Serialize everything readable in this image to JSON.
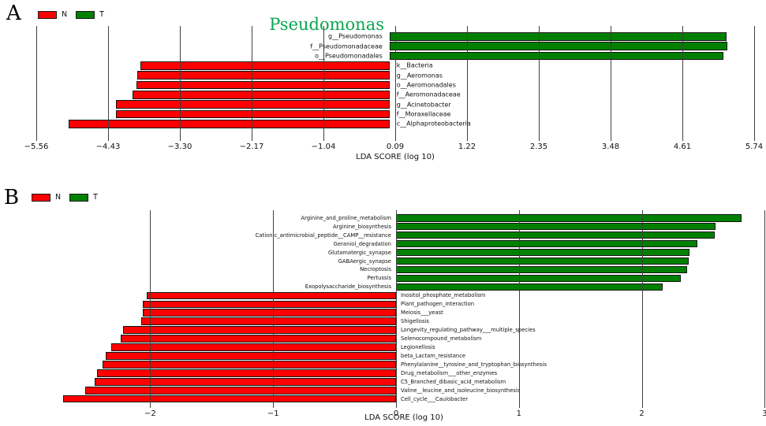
{
  "figure_type": "LEfSe LDA score horizontal bar charts, two panels",
  "colors": {
    "group_N": "#ff0000",
    "group_T": "#008000",
    "title_green": "#0aa64f",
    "bar_edge": "#141414"
  },
  "chart_data": [
    {
      "type": "bar",
      "orientation": "horizontal",
      "panel_letter": "A",
      "title": "Pseudomonas",
      "title_color": "#0aa64f",
      "xlabel": "LDA SCORE (log 10)",
      "legend": [
        {
          "label": "N",
          "color": "#ff0000"
        },
        {
          "label": "T",
          "color": "#008000"
        }
      ],
      "legend_position": "top-left",
      "grid": true,
      "xlim": [
        -5.56,
        5.74
      ],
      "ticks": [
        {
          "value": -5.56,
          "label": "−5.56"
        },
        {
          "value": -4.43,
          "label": "−4.43"
        },
        {
          "value": -3.3,
          "label": "−3.30"
        },
        {
          "value": -2.17,
          "label": "−2.17"
        },
        {
          "value": -1.04,
          "label": "−1.04"
        },
        {
          "value": 0.09,
          "label": "0.09"
        },
        {
          "value": 1.22,
          "label": "1.22"
        },
        {
          "value": 2.35,
          "label": "2.35"
        },
        {
          "value": 3.48,
          "label": "3.48"
        },
        {
          "value": 4.61,
          "label": "4.61"
        },
        {
          "value": 5.74,
          "label": "5.74"
        }
      ],
      "bars": [
        {
          "category": "g__Pseudomonas",
          "value": 5.3,
          "group": "T",
          "color": "#008000"
        },
        {
          "category": "f__Pseudomonadaceae",
          "value": 5.32,
          "group": "T",
          "color": "#008000"
        },
        {
          "category": "o__Pseudomonadales",
          "value": 5.26,
          "group": "T",
          "color": "#008000"
        },
        {
          "category": "k__Bacteria",
          "value": -3.92,
          "group": "N",
          "color": "#ff0000"
        },
        {
          "category": "g__Aeromonas",
          "value": -3.97,
          "group": "N",
          "color": "#ff0000"
        },
        {
          "category": "o__Aeromonadales",
          "value": -3.98,
          "group": "N",
          "color": "#ff0000"
        },
        {
          "category": "f__Aeromonadaceae",
          "value": -4.05,
          "group": "N",
          "color": "#ff0000"
        },
        {
          "category": "g__Acinetobacter",
          "value": -4.3,
          "group": "N",
          "color": "#ff0000"
        },
        {
          "category": "f__Moraxellaceae",
          "value": -4.3,
          "group": "N",
          "color": "#ff0000"
        },
        {
          "category": "c__Alphaproteobacteria",
          "value": -5.05,
          "group": "N",
          "color": "#ff0000"
        }
      ]
    },
    {
      "type": "bar",
      "orientation": "horizontal",
      "panel_letter": "B",
      "title": "",
      "xlabel": "LDA SCORE (log 10)",
      "legend": [
        {
          "label": "N",
          "color": "#ff0000"
        },
        {
          "label": "T",
          "color": "#008000"
        }
      ],
      "legend_position": "top-left",
      "grid": true,
      "xlim": [
        -2.75,
        3
      ],
      "ticks": [
        {
          "value": -2,
          "label": "−2"
        },
        {
          "value": -1,
          "label": "−1"
        },
        {
          "value": 0,
          "label": "0"
        },
        {
          "value": 1,
          "label": "1"
        },
        {
          "value": 2,
          "label": "2"
        },
        {
          "value": 3,
          "label": "3"
        }
      ],
      "bars": [
        {
          "category": "Arginine_and_proline_metabolism",
          "value": 2.81,
          "group": "T",
          "color": "#008000"
        },
        {
          "category": "Arginine_biosynthesis",
          "value": 2.6,
          "group": "T",
          "color": "#008000"
        },
        {
          "category": "Cationic_antimicrobial_peptide__CAMP__resistance",
          "value": 2.59,
          "group": "T",
          "color": "#008000"
        },
        {
          "category": "Geraniol_degradation",
          "value": 2.45,
          "group": "T",
          "color": "#008000"
        },
        {
          "category": "Glutamatergic_synapse",
          "value": 2.39,
          "group": "T",
          "color": "#008000"
        },
        {
          "category": "GABAergic_synapse",
          "value": 2.38,
          "group": "T",
          "color": "#008000"
        },
        {
          "category": "Necroptosis",
          "value": 2.37,
          "group": "T",
          "color": "#008000"
        },
        {
          "category": "Pertussis",
          "value": 2.32,
          "group": "T",
          "color": "#008000"
        },
        {
          "category": "Exopolysaccharide_biosynthesis",
          "value": 2.17,
          "group": "T",
          "color": "#008000"
        },
        {
          "category": "Inositol_phosphate_metabolism",
          "value": -2.03,
          "group": "N",
          "color": "#ff0000"
        },
        {
          "category": "Plant_pathogen_interaction",
          "value": -2.06,
          "group": "N",
          "color": "#ff0000"
        },
        {
          "category": "Meiosis___yeast",
          "value": -2.06,
          "group": "N",
          "color": "#ff0000"
        },
        {
          "category": "Shigellosis",
          "value": -2.07,
          "group": "N",
          "color": "#ff0000"
        },
        {
          "category": "Longevity_regulating_pathway___multiple_species",
          "value": -2.22,
          "group": "N",
          "color": "#ff0000"
        },
        {
          "category": "Selenocompound_metabolism",
          "value": -2.24,
          "group": "N",
          "color": "#ff0000"
        },
        {
          "category": "Legionellosis",
          "value": -2.32,
          "group": "N",
          "color": "#ff0000"
        },
        {
          "category": "beta_Lactam_resistance",
          "value": -2.36,
          "group": "N",
          "color": "#ff0000"
        },
        {
          "category": "Phenylalanine__tyrosine_and_tryptophan_biosynthesis",
          "value": -2.39,
          "group": "N",
          "color": "#ff0000"
        },
        {
          "category": "Drug_metabolism___other_enzymes",
          "value": -2.43,
          "group": "N",
          "color": "#ff0000"
        },
        {
          "category": "C5_Branched_dibasic_acid_metabolism",
          "value": -2.45,
          "group": "N",
          "color": "#ff0000"
        },
        {
          "category": "Valine__leucine_and_isoleucine_biosynthesis",
          "value": -2.53,
          "group": "N",
          "color": "#ff0000"
        },
        {
          "category": "Cell_cycle___Caulobacter",
          "value": -2.71,
          "group": "N",
          "color": "#ff0000"
        }
      ]
    }
  ]
}
